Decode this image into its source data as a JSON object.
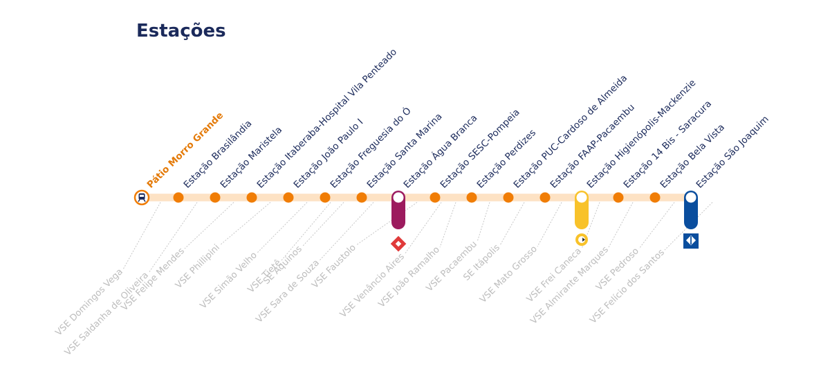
{
  "title": "Estações",
  "colors": {
    "line": "#fde2c4",
    "dot": "#f07d06",
    "origin_label": "#e47a08",
    "station_label": "#1b2a5b",
    "vse_label": "#bdbdbd",
    "vse_dash": "#c6c6c6",
    "line_purple": "#9c1b5e",
    "line_yellow": "#f8c22a",
    "line_blue": "#0a4e9e",
    "line_diamond_red": "#e03a3a"
  },
  "stations": [
    {
      "name": "Pátio Morro Grande",
      "kind": "origin",
      "icon": "train-icon"
    },
    {
      "name": "Estação Brasilândia",
      "kind": "station"
    },
    {
      "name": "Estação Maristela",
      "kind": "station"
    },
    {
      "name": "Estação Itaberaba-Hospital Vila Penteado",
      "kind": "station"
    },
    {
      "name": "Estação João Paulo I",
      "kind": "station"
    },
    {
      "name": "Estação Freguesia do Ó",
      "kind": "station"
    },
    {
      "name": "Estação Santa Marina",
      "kind": "station"
    },
    {
      "name": "Estação Água Branca",
      "kind": "transfer",
      "transfer": "purple",
      "icon": "cptm-diamond-icon"
    },
    {
      "name": "Estação SESC-Pompeia",
      "kind": "station"
    },
    {
      "name": "Estação Perdizes",
      "kind": "station"
    },
    {
      "name": "Estação PUC-Cardoso de Almeida",
      "kind": "station"
    },
    {
      "name": "Estação FAAP-Pacaembu",
      "kind": "station"
    },
    {
      "name": "Estação Higienópolis-Mackenzie",
      "kind": "transfer",
      "transfer": "yellow",
      "icon": "viaquatro-icon"
    },
    {
      "name": "Estação 14 Bis - Saracura",
      "kind": "station"
    },
    {
      "name": "Estação Bela Vista",
      "kind": "station"
    },
    {
      "name": "Estação São Joaquim",
      "kind": "transfer",
      "transfer": "blue",
      "icon": "metro-diamond-icon"
    }
  ],
  "vse": [
    "VSE Domingos Vega",
    "VSE Saldanha de Oliveira",
    "VSE Felipe Mendes",
    "VSE Phillipini",
    "VSE Simão Velho",
    "VSE Tietê",
    "SE Aquinos",
    "VSE Sara de Souza",
    "VSE Faustolo",
    "VSE Venâncio Aires",
    "VSE João Ramalho",
    "VSE Pacaembu",
    "SE Itápolis",
    "VSE Mato Grosso",
    "VSE Frei Caneca",
    "VSE Almirante Marques",
    "VSE Pedroso",
    "VSE Felício dos Santos"
  ]
}
